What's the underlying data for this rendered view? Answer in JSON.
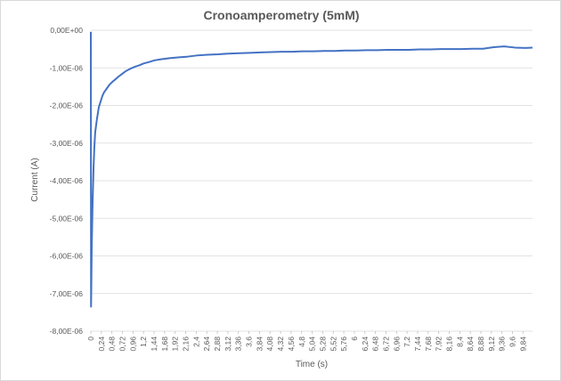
{
  "chart_data": {
    "type": "line",
    "title": "Cronoamperometry (5mM)",
    "xlabel": "Time (s)",
    "ylabel": "Current (A)",
    "xlim": [
      0,
      10
    ],
    "ylim": [
      -8e-06,
      0
    ],
    "y_ticks": [
      "0,00E+00",
      "-1,00E-06",
      "-2,00E-06",
      "-3,00E-06",
      "-4,00E-06",
      "-5,00E-06",
      "-6,00E-06",
      "-7,00E-06",
      "-8,00E-06"
    ],
    "x_ticks": [
      "0",
      "0,24",
      "0,48",
      "0,72",
      "0,96",
      "1,2",
      "1,44",
      "1,68",
      "1,92",
      "2,16",
      "2,4",
      "2,64",
      "2,88",
      "3,12",
      "3,36",
      "3,6",
      "3,84",
      "4,08",
      "4,32",
      "4,56",
      "4,8",
      "5,04",
      "5,28",
      "5,52",
      "5,76",
      "6",
      "6,24",
      "6,48",
      "6,72",
      "6,96",
      "7,2",
      "7,44",
      "7,68",
      "7,92",
      "8,16",
      "8,4",
      "8,64",
      "8,88",
      "9,12",
      "9,36",
      "9,6",
      "9,84"
    ],
    "grid": true,
    "legend": "none",
    "line_color": "#4472c4",
    "series": [
      {
        "x": [
          0,
          0.005,
          0.01,
          0.02,
          0.04,
          0.06,
          0.08,
          0.1,
          0.14,
          0.18,
          0.22,
          0.26,
          0.3,
          0.36,
          0.42,
          0.48,
          0.56,
          0.64,
          0.72,
          0.8,
          0.9,
          1.0,
          1.1,
          1.2,
          1.3,
          1.44,
          1.6,
          1.8,
          2.0,
          2.2,
          2.4,
          2.64,
          2.88,
          3.12,
          3.36,
          3.6,
          3.84,
          4.08,
          4.32,
          4.56,
          4.8,
          5.04,
          5.28,
          5.52,
          5.76,
          6.0,
          6.24,
          6.48,
          6.72,
          6.96,
          7.2,
          7.44,
          7.68,
          7.92,
          8.16,
          8.4,
          8.64,
          8.88,
          9.12,
          9.36,
          9.6,
          9.84,
          10.0
        ],
        "y": [
          -4e-08,
          -7.35e-06,
          -6.9e-06,
          -5.8e-06,
          -4.6e-06,
          -3.7e-06,
          -3.1e-06,
          -2.7e-06,
          -2.35e-06,
          -2.05e-06,
          -1.9e-06,
          -1.75e-06,
          -1.65e-06,
          -1.55e-06,
          -1.45e-06,
          -1.38e-06,
          -1.3e-06,
          -1.22e-06,
          -1.15e-06,
          -1.08e-06,
          -1.02e-06,
          -9.7e-07,
          -9.3e-07,
          -8.8e-07,
          -8.5e-07,
          -8e-07,
          -7.7e-07,
          -7.4e-07,
          -7.2e-07,
          -7e-07,
          -6.7e-07,
          -6.5e-07,
          -6.4e-07,
          -6.2e-07,
          -6.1e-07,
          -6e-07,
          -5.9e-07,
          -5.8e-07,
          -5.7e-07,
          -5.7e-07,
          -5.6e-07,
          -5.6e-07,
          -5.5e-07,
          -5.5e-07,
          -5.4e-07,
          -5.4e-07,
          -5.3e-07,
          -5.3e-07,
          -5.2e-07,
          -5.2e-07,
          -5.2e-07,
          -5.1e-07,
          -5.1e-07,
          -5e-07,
          -5e-07,
          -5e-07,
          -4.9e-07,
          -4.9e-07,
          -4.5e-07,
          -4.3e-07,
          -4.6e-07,
          -4.7e-07,
          -4.6e-07
        ]
      }
    ]
  }
}
